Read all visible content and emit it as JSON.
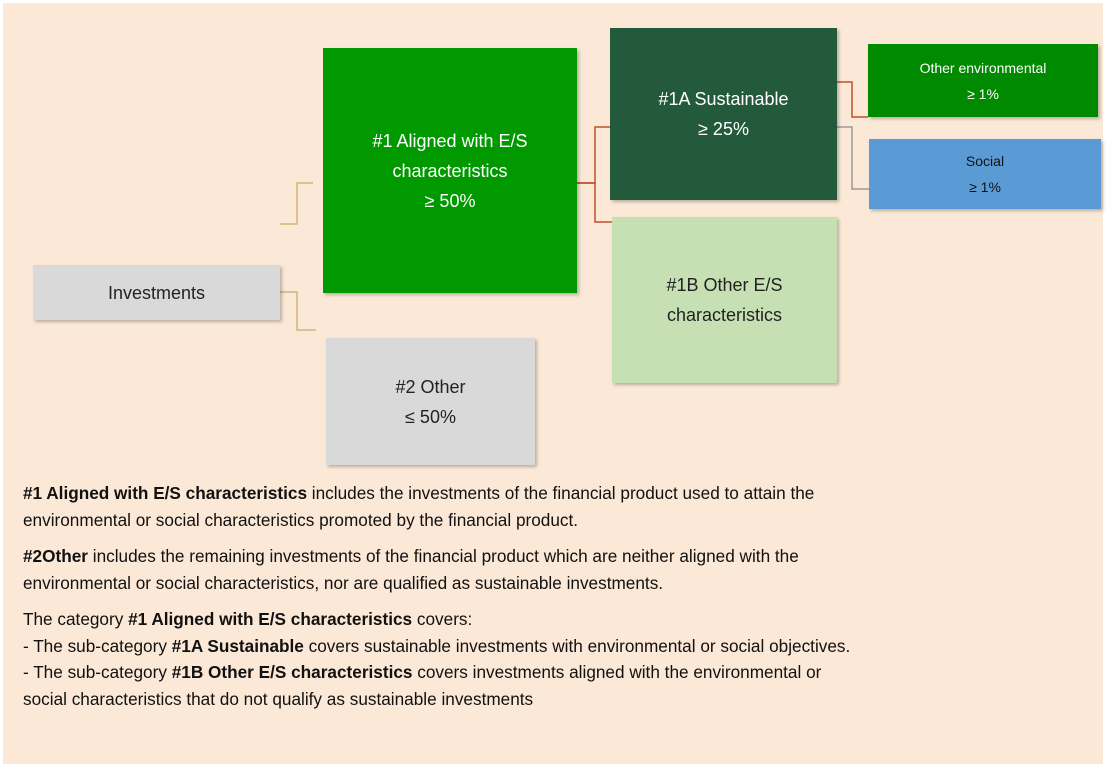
{
  "nodes": [
    {
      "id": "investments",
      "lines": [
        "Investments"
      ]
    },
    {
      "id": "aligned",
      "lines": [
        "#1 Aligned with E/S",
        "characteristics",
        "≥ 50%"
      ]
    },
    {
      "id": "other",
      "lines": [
        "#2 Other",
        "≤ 50%"
      ]
    },
    {
      "id": "sustainable",
      "lines": [
        "#1A Sustainable",
        "≥ 25%"
      ]
    },
    {
      "id": "other-es",
      "lines": [
        "#1B Other E/S",
        "characteristics"
      ]
    },
    {
      "id": "environmental",
      "lines": [
        "Other environmental",
        "≥ 1%"
      ]
    },
    {
      "id": "social",
      "lines": [
        "Social",
        "≥ 1%"
      ]
    }
  ],
  "notes": [
    [
      [
        {
          "bold": true,
          "text": "#1 Aligned with E/S characteristics"
        },
        {
          "bold": false,
          "text": " includes the investments of the financial product used to attain the"
        }
      ],
      [
        {
          "bold": false,
          "text": "environmental or social characteristics promoted by the financial product."
        }
      ]
    ],
    [
      [
        {
          "bold": true,
          "text": "#2Other"
        },
        {
          "bold": false,
          "text": " includes the remaining investments of the financial product which are neither aligned with the"
        }
      ],
      [
        {
          "bold": false,
          "text": "environmental or social characteristics, nor are qualified as sustainable investments."
        }
      ]
    ],
    [
      [
        {
          "bold": false,
          "text": "The category "
        },
        {
          "bold": true,
          "text": "#1 Aligned with E/S characteristics"
        },
        {
          "bold": false,
          "text": " covers:"
        }
      ],
      [
        {
          "bold": false,
          "text": "- The sub-category "
        },
        {
          "bold": true,
          "text": "#1A Sustainable"
        },
        {
          "bold": false,
          "text": " covers sustainable investments with environmental or social objectives."
        }
      ],
      [
        {
          "bold": false,
          "text": "- The sub-category "
        },
        {
          "bold": true,
          "text": "#1B Other E/S characteristics"
        },
        {
          "bold": false,
          "text": " covers investments aligned with the environmental or"
        }
      ],
      [
        {
          "bold": false,
          "text": "social characteristics that do not qualify as sustainable investments"
        }
      ]
    ]
  ]
}
